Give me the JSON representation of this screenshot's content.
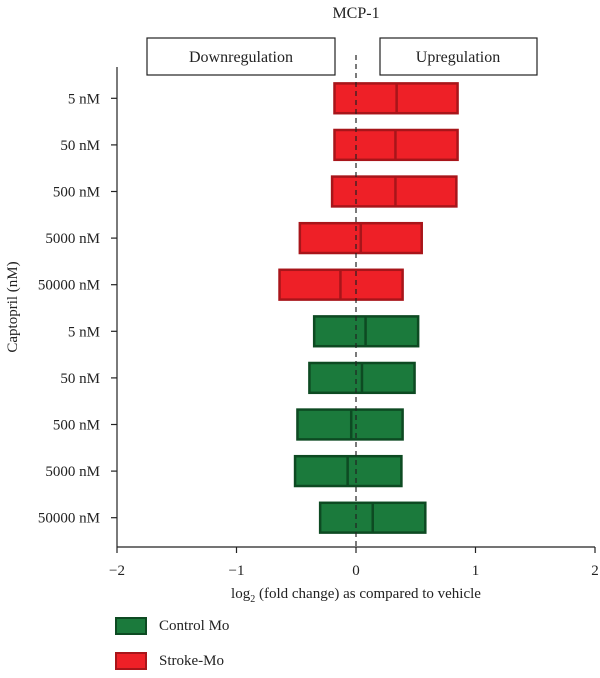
{
  "chart_data": {
    "type": "bar",
    "orientation": "horizontal-range",
    "title": "MCP-1",
    "xlabel_prefix": "log",
    "xlabel_sub": "2",
    "xlabel_suffix": " (fold change) as compared to vehicle",
    "ylabel": "Captopril (nM)",
    "xlim": [
      -2,
      2
    ],
    "xticks": [
      -2,
      -1,
      0,
      1,
      2
    ],
    "xtick_labels": [
      "−2",
      "−1",
      "0",
      "1",
      "2"
    ],
    "reference_line": 0,
    "annotations": {
      "left": "Downregulation",
      "right": "Upregulation"
    },
    "categories": [
      "5 nM",
      "50 nM",
      "500 nM",
      "5000 nM",
      "50000 nM",
      "5 nM",
      "50 nM",
      "500 nM",
      "5000 nM",
      "50000 nM"
    ],
    "rows": [
      {
        "category": "5 nM",
        "series": "Stroke-Mo",
        "min": -0.18,
        "median": 0.34,
        "max": 0.85
      },
      {
        "category": "50 nM",
        "series": "Stroke-Mo",
        "min": -0.18,
        "median": 0.33,
        "max": 0.85
      },
      {
        "category": "500 nM",
        "series": "Stroke-Mo",
        "min": -0.2,
        "median": 0.33,
        "max": 0.84
      },
      {
        "category": "5000 nM",
        "series": "Stroke-Mo",
        "min": -0.47,
        "median": 0.04,
        "max": 0.55
      },
      {
        "category": "50000 nM",
        "series": "Stroke-Mo",
        "min": -0.64,
        "median": -0.13,
        "max": 0.39
      },
      {
        "category": "5 nM",
        "series": "Control Mo",
        "min": -0.35,
        "median": 0.08,
        "max": 0.52
      },
      {
        "category": "50 nM",
        "series": "Control Mo",
        "min": -0.39,
        "median": 0.05,
        "max": 0.49
      },
      {
        "category": "500 nM",
        "series": "Control Mo",
        "min": -0.49,
        "median": -0.04,
        "max": 0.39
      },
      {
        "category": "5000 nM",
        "series": "Control Mo",
        "min": -0.51,
        "median": -0.07,
        "max": 0.38
      },
      {
        "category": "50000 nM",
        "series": "Control Mo",
        "min": -0.3,
        "median": 0.14,
        "max": 0.58
      }
    ],
    "series": [
      {
        "name": "Control Mo",
        "fill": "#1b7a3c",
        "stroke": "#0d4a22"
      },
      {
        "name": "Stroke-Mo",
        "fill": "#ee2027",
        "stroke": "#a8151a"
      }
    ]
  }
}
